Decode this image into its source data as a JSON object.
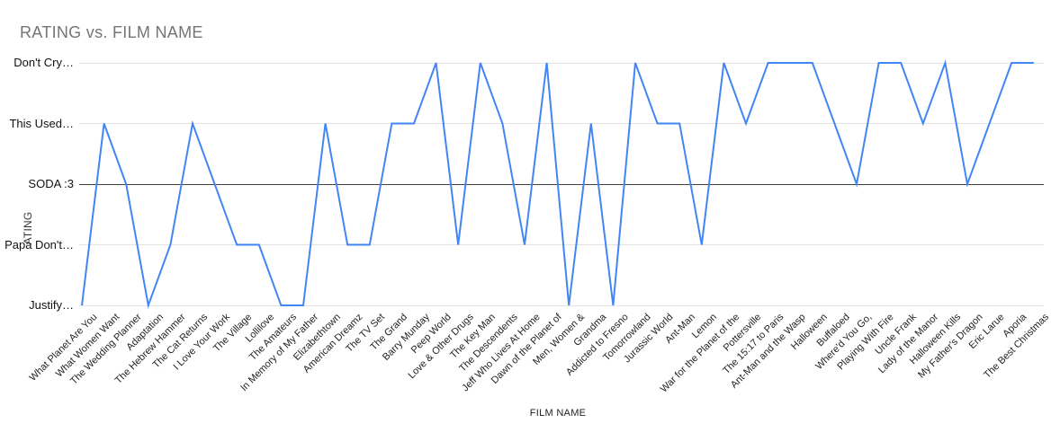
{
  "title": "RATING vs. FILM NAME",
  "axes": {
    "x_title": "FILM NAME",
    "y_title": "RATING",
    "y_title_visible": "ATING"
  },
  "chart_data": {
    "type": "line",
    "title": "RATING vs. FILM NAME",
    "xlabel": "FILM NAME",
    "ylabel": "RATING",
    "legend_position": "none",
    "grid": true,
    "y_axis_type": "categorical",
    "y_tick_labels_top_to_bottom": [
      "Don't Cry…",
      "This Used…",
      "SODA :3",
      "Papa Don't…",
      "Justify…"
    ],
    "value_to_rating": {
      "5": "Don't Cry…",
      "4": "This Used…",
      "3": "SODA :3",
      "2": "Papa Don't…",
      "1": "Justify…"
    },
    "ylim": [
      1,
      5
    ],
    "categories": [
      "What Planet Are You",
      "What Women Want",
      "The Wedding Planner",
      "Adaptation",
      "The Hebrew Hammer",
      "The Cat Returns",
      "I Love Your Work",
      "The Village",
      "Lollilove",
      "The Amateurs",
      "In Memory of My Father",
      "Elizabethtown",
      "American Dreamz",
      "The TV Set",
      "The Grand",
      "Barry Munday",
      "Peep World",
      "Love & Other Drugs",
      "The Key Man",
      "The Descendents",
      "Jeff Who Lives At Home",
      "Dawn of the Planet of",
      "Men, Women &",
      "Grandma",
      "Addicted to Fresno",
      "Tomorrowland",
      "Jurassic World",
      "Ant-Man",
      "Lemon",
      "War for the Planet of the",
      "Pottersville",
      "The 15:17 to Paris",
      "Ant-Man and the Wasp",
      "Halloween",
      "Buffaloed",
      "Where'd You Go,",
      "Playing With Fire",
      "Uncle Frank",
      "Lady of the Manor",
      "Halloween Kills",
      "My Father's Dragon",
      "Eric Larue",
      "Aporia",
      "The Best Christmas"
    ],
    "series": [
      {
        "name": "RATING",
        "values": [
          1,
          4,
          3,
          1,
          2,
          4,
          3,
          2,
          2,
          1,
          1,
          4,
          2,
          2,
          4,
          4,
          5,
          2,
          5,
          4,
          2,
          5,
          1,
          4,
          1,
          5,
          4,
          4,
          2,
          5,
          4,
          5,
          5,
          5,
          4,
          3,
          5,
          5,
          4,
          5,
          3,
          4,
          5,
          5
        ]
      }
    ],
    "colors": {
      "line": "#4285f4",
      "gridline": "#e3e3e3",
      "baseline": "#424242",
      "title_text": "#757575",
      "axis_text": "#222222"
    }
  }
}
